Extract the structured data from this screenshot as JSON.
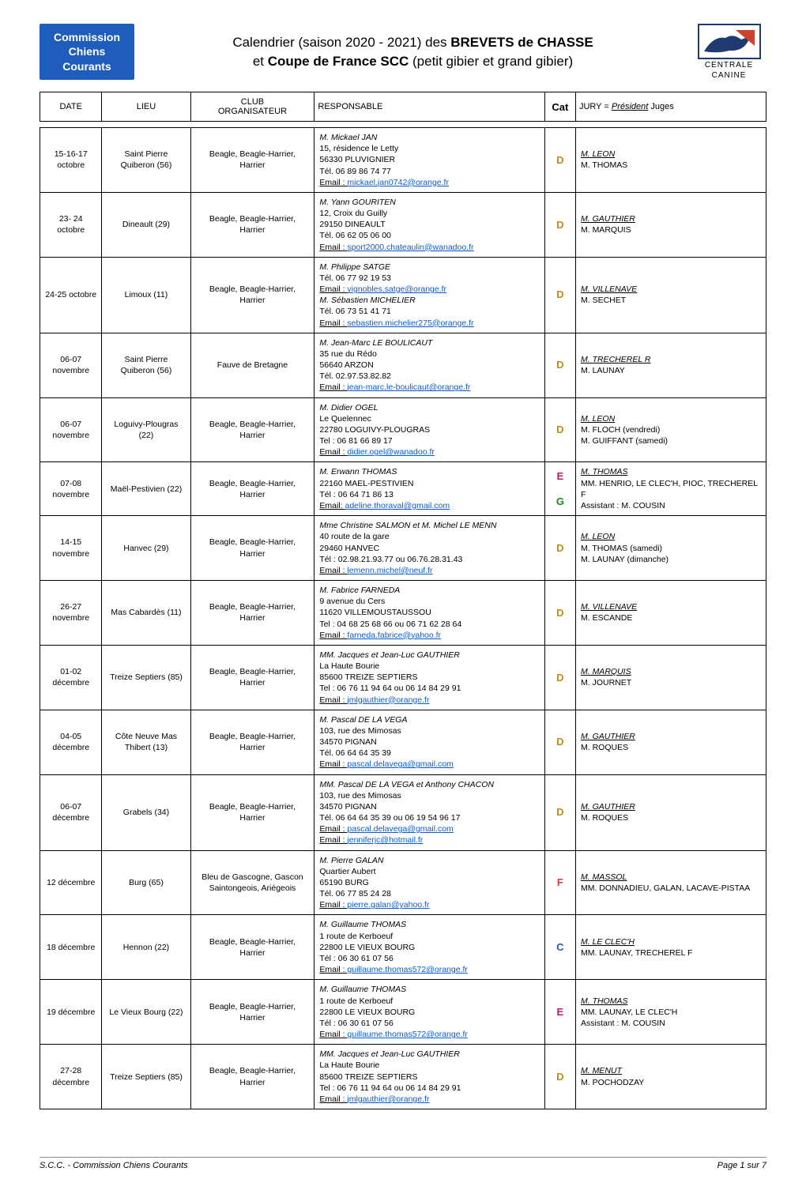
{
  "badge": {
    "line1": "Commission",
    "line2": "Chiens",
    "line3": "Courants"
  },
  "title": {
    "line1_a": "Calendrier (saison 2020 - 2021) des ",
    "line1_b": "BREVETS de CHASSE",
    "line2_a": "et ",
    "line2_b": "Coupe de France SCC",
    "line2_c": " (petit gibier et grand gibier)"
  },
  "logo": {
    "top": "CENTRALE",
    "bottom": "CANINE"
  },
  "thead": {
    "date": "DATE",
    "lieu": "LIEU",
    "club_l1": "CLUB",
    "club_l2": "ORGANISATEUR",
    "resp": "RESPONSABLE",
    "cat": "Cat",
    "jury_a": "JURY = ",
    "jury_b": "Président",
    "jury_c": "  Juges"
  },
  "rows": [
    {
      "date": "15-16-17 octobre",
      "lieu": "Saint Pierre Quiberon (56)",
      "club": "Beagle, Beagle-Harrier, Harrier",
      "resp_lines": [
        "M. Mickael JAN",
        "15, résidence le Letty",
        "56330 PLUVIGNIER",
        "Tél. 06 89 86 74 77"
      ],
      "resp_email": "mickael.jan0742@orange.fr",
      "cats": [
        {
          "v": "D",
          "cls": "cat-D"
        }
      ],
      "jury_pres": "M. LEON",
      "jury_rest": [
        "M. THOMAS"
      ]
    },
    {
      "date": "23- 24 octobre",
      "lieu": "Dineault (29)",
      "club": "Beagle, Beagle-Harrier, Harrier",
      "resp_lines": [
        "M. Yann GOURITEN",
        "12, Croix du Guilly",
        "29150 DINEAULT",
        "Tél. 06 62 05 06 00"
      ],
      "resp_email": "sport2000.chateaulin@wanadoo.fr",
      "cats": [
        {
          "v": "D",
          "cls": "cat-D"
        }
      ],
      "jury_pres": "M. GAUTHIER",
      "jury_rest": [
        "M. MARQUIS"
      ]
    },
    {
      "date": "24-25 octobre",
      "lieu": "Limoux (11)",
      "club": "Beagle, Beagle-Harrier, Harrier",
      "resp_lines": [
        "M. Philippe SATGE",
        "Tél. 06 77 92 19 53"
      ],
      "resp_email": "vignobles.satge@orange.fr",
      "resp_lines2": [
        "M. Sébastien MICHELIER",
        "Tél. 06 73 51 41 71"
      ],
      "resp_email2": "sebastien.michelier275@orange.fr",
      "cats": [
        {
          "v": "D",
          "cls": "cat-D"
        }
      ],
      "jury_pres": "M. VILLENAVE",
      "jury_rest": [
        "M. SECHET"
      ]
    },
    {
      "date": "06-07 novembre",
      "lieu": "Saint Pierre Quiberon (56)",
      "club": "Fauve de Bretagne",
      "resp_lines": [
        "M. Jean-Marc LE BOULICAUT",
        "35 rue du Rédo",
        "56640 ARZON",
        "Tél. 02.97.53.82.82"
      ],
      "resp_email": "jean-marc.le-boulicaut@orange.fr",
      "cats": [
        {
          "v": "D",
          "cls": "cat-D"
        }
      ],
      "jury_pres": "M. TRECHEREL R",
      "jury_rest": [
        "M. LAUNAY"
      ]
    },
    {
      "date": "06-07 novembre",
      "lieu": "Loguivy-Plougras (22)",
      "club": "Beagle, Beagle-Harrier, Harrier",
      "resp_lines": [
        "M. Didier OGEL",
        "Le Quelennec",
        "22780 LOGUIVY-PLOUGRAS",
        "Tel : 06 81 66 89 17"
      ],
      "resp_email": "didier.ogel@wanadoo.fr",
      "cats": [
        {
          "v": "D",
          "cls": "cat-D"
        }
      ],
      "jury_pres": "M. LEON",
      "jury_rest": [
        "M. FLOCH (vendredi)",
        "M. GUIFFANT (samedi)"
      ]
    },
    {
      "date": "07-08 novembre",
      "lieu": "Maël-Pestivien (22)",
      "club": "Beagle, Beagle-Harrier, Harrier",
      "resp_lines": [
        "M. Erwann THOMAS",
        "22160 MAEL-PESTIVIEN",
        "Tél : 06 64 71 86 13"
      ],
      "resp_email_label": "Email: ",
      "resp_email": "adeline.thoraval@gmail.com",
      "cats": [
        {
          "v": "E",
          "cls": "cat-E"
        },
        {
          "v": "G",
          "cls": "cat-G"
        }
      ],
      "jury_pres": "M. THOMAS",
      "jury_rest": [
        "MM. HENRIO, LE CLEC'H, PIOC, TRECHEREL F",
        "Assistant : M. COUSIN"
      ]
    },
    {
      "date": "14-15 novembre",
      "lieu": "Hanvec (29)",
      "club": "Beagle, Beagle-Harrier, Harrier",
      "resp_lines": [
        "Mme Christine SALMON et M. Michel LE MENN",
        "40 route de la gare",
        "29460 HANVEC",
        "Tél : 02.98.21.93.77 ou 06.76.28.31.43"
      ],
      "resp_ital_first": true,
      "resp_email": "lemenn.michel@neuf.fr",
      "cats": [
        {
          "v": "D",
          "cls": "cat-D"
        }
      ],
      "jury_pres": "M. LEON",
      "jury_rest": [
        "M. THOMAS (samedi)",
        "M. LAUNAY (dimanche)"
      ]
    },
    {
      "date": "26-27 novembre",
      "lieu": "Mas Cabardès (11)",
      "club": "Beagle, Beagle-Harrier, Harrier",
      "resp_lines": [
        "M. Fabrice FARNEDA",
        "9 avenue du Cers",
        "11620 VILLEMOUSTAUSSOU",
        "Tel : 04 68 25 68 66 ou 06 71 62 28 64"
      ],
      "resp_email": "farneda.fabrice@yahoo.fr",
      "cats": [
        {
          "v": "D",
          "cls": "cat-D"
        }
      ],
      "jury_pres": "M. VILLENAVE",
      "jury_rest": [
        "M. ESCANDE"
      ]
    },
    {
      "date": "01-02 décembre",
      "lieu": "Treize Septiers (85)",
      "club": "Beagle, Beagle-Harrier, Harrier",
      "resp_lines": [
        "MM. Jacques et Jean-Luc GAUTHIER",
        "La Haute Bourie",
        "85600 TREIZE SEPTIERS",
        "Tel : 06 76 11 94 64 ou 06 14 84 29 91"
      ],
      "resp_email": "jmlgauthier@orange.fr",
      "cats": [
        {
          "v": "D",
          "cls": "cat-D"
        }
      ],
      "jury_pres": "M. MARQUIS",
      "jury_rest": [
        "M. JOURNET"
      ]
    },
    {
      "date": "04-05 décembre",
      "lieu": "Côte Neuve Mas Thibert (13)",
      "club": "Beagle, Beagle-Harrier, Harrier",
      "resp_lines": [
        "M. Pascal DE LA VEGA",
        "103, rue des Mimosas",
        "34570 PIGNAN",
        "Tél. 06 64 64 35 39"
      ],
      "resp_email": "pascal.delavega@gmail.com",
      "cats": [
        {
          "v": "D",
          "cls": "cat-D"
        }
      ],
      "jury_pres": "M. GAUTHIER",
      "jury_rest": [
        "M. ROQUES"
      ]
    },
    {
      "date": "06-07 décembre",
      "lieu": "Grabels (34)",
      "club": "Beagle, Beagle-Harrier, Harrier",
      "resp_lines": [
        "MM. Pascal DE LA VEGA et Anthony CHACON",
        "103, rue des Mimosas",
        "34570 PIGNAN",
        "Tél. 06 64 64 35 39 ou 06 19 54 96 17"
      ],
      "resp_ital_first": true,
      "resp_email": "pascal.delavega@gmail.com",
      "resp_email2": "jenniferjc@hotmail.fr",
      "cats": [
        {
          "v": "D",
          "cls": "cat-D"
        }
      ],
      "jury_pres": "M. GAUTHIER",
      "jury_rest": [
        "M. ROQUES"
      ]
    },
    {
      "date": "12 décembre",
      "lieu": "Burg (65)",
      "club": "Bleu de Gascogne, Gascon Saintongeois, Ariégeois",
      "resp_lines": [
        "M. Pierre GALAN",
        "Quartier Aubert",
        "65190 BURG",
        "Tél. 06 77 85 24 28"
      ],
      "resp_email": "pierre.galan@yahoo.fr",
      "cats": [
        {
          "v": "F",
          "cls": "cat-F"
        }
      ],
      "jury_pres": "M. MASSOL",
      "jury_rest": [
        "MM. DONNADIEU, GALAN, LACAVE-PISTAA"
      ]
    },
    {
      "date": "18 décembre",
      "lieu": "Hennon (22)",
      "club": "Beagle, Beagle-Harrier, Harrier",
      "resp_lines": [
        "M. Guillaume THOMAS",
        "1 route de Kerboeuf",
        "22800 LE VIEUX BOURG",
        "Tél : 06 30 61 07 56"
      ],
      "resp_email": "guillaume.thomas572@orange.fr",
      "cats": [
        {
          "v": "C",
          "cls": "cat-C"
        }
      ],
      "jury_pres": "M. LE CLEC'H",
      "jury_rest": [
        "MM. LAUNAY, TRECHEREL F"
      ]
    },
    {
      "date": "19 décembre",
      "lieu": "Le Vieux Bourg (22)",
      "club": "Beagle, Beagle-Harrier, Harrier",
      "resp_lines": [
        "M. Guillaume THOMAS",
        "1 route de Kerboeuf",
        "22800 LE VIEUX BOURG",
        "Tél : 06 30 61 07 56"
      ],
      "resp_email": "guillaume.thomas572@orange.fr",
      "cats": [
        {
          "v": "E",
          "cls": "cat-E"
        }
      ],
      "jury_pres": "M. THOMAS",
      "jury_rest": [
        "MM. LAUNAY, LE CLEC'H",
        "Assistant : M. COUSIN"
      ]
    },
    {
      "date": "27-28 décembre",
      "lieu": "Treize Septiers (85)",
      "club": "Beagle, Beagle-Harrier, Harrier",
      "resp_lines": [
        "MM. Jacques et Jean-Luc GAUTHIER",
        "La Haute Bourie",
        "85600 TREIZE SEPTIERS",
        "Tel : 06 76 11 94 64 ou 06 14 84 29 91"
      ],
      "resp_email": "jmlgauthier@orange.fr",
      "cats": [
        {
          "v": "D",
          "cls": "cat-D"
        }
      ],
      "jury_pres": "M. MENUT",
      "jury_rest": [
        "M. POCHODZAY"
      ]
    }
  ],
  "email_prefix": "Email : ",
  "footer": {
    "left": "S.C.C. - Commission Chiens Courants",
    "right": "Page 1 sur 7"
  },
  "colors": {
    "badge_bg": "#1f5dbd",
    "link": "#0b5bd3",
    "cat_D": "#c58a12",
    "cat_E": "#b81d6b",
    "cat_G": "#1a8a1a",
    "cat_F": "#d43b3b",
    "cat_C": "#1f5dbd",
    "border": "#000000"
  }
}
